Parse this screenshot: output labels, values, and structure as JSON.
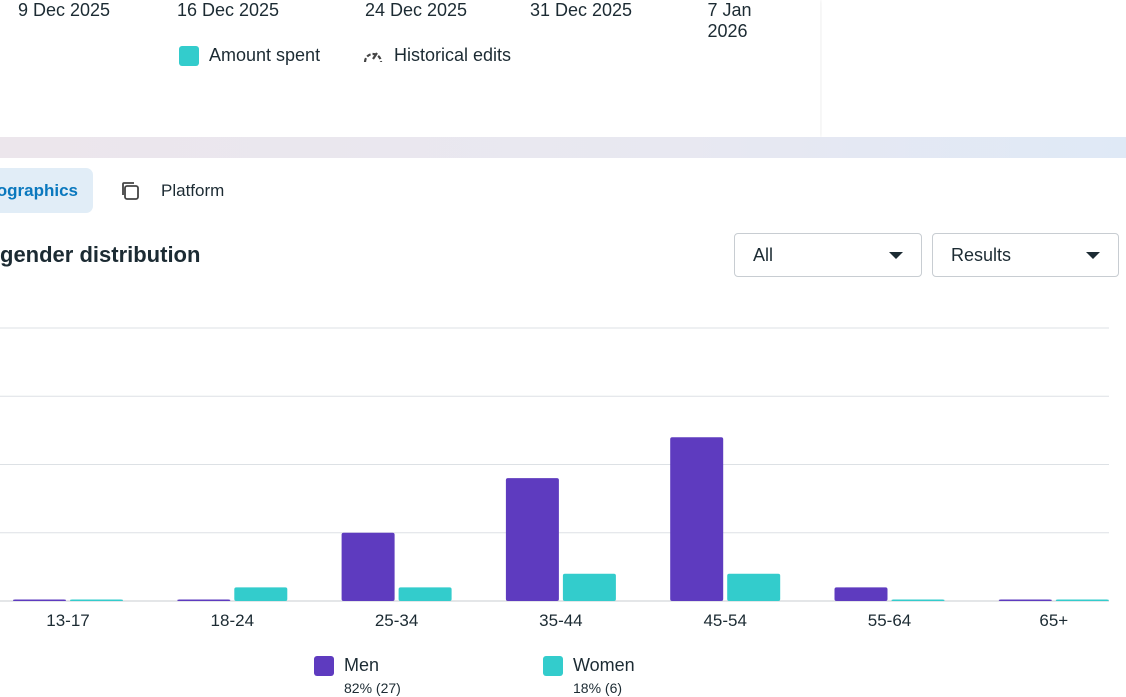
{
  "top_chart": {
    "x_labels": [
      "9 Dec 2025",
      "16 Dec 2025",
      "24 Dec 2025",
      "31 Dec 2025",
      "7 Jan 2026"
    ],
    "legend": [
      {
        "label": "Amount spent",
        "color": "#33cccc"
      },
      {
        "label": "Historical edits",
        "icon": "gauge-icon"
      }
    ]
  },
  "tabs": [
    {
      "label": "ographics",
      "active": true
    },
    {
      "label": "Platform",
      "icon": "copy-icon"
    }
  ],
  "section_title": "gender distribution",
  "filters": {
    "audience": "All",
    "metric": "Results"
  },
  "chart_data": {
    "type": "bar",
    "title": "gender distribution",
    "categories": [
      "13-17",
      "18-24",
      "25-34",
      "35-44",
      "45-54",
      "55-64",
      "65+"
    ],
    "series": [
      {
        "name": "Men",
        "color": "#5e3bbf",
        "values": [
          0,
          0,
          5,
          9,
          12,
          1,
          0
        ],
        "summary": "82% (27)"
      },
      {
        "name": "Women",
        "color": "#33cccc",
        "values": [
          0,
          1,
          1,
          2,
          2,
          0,
          0
        ],
        "summary": "18% (6)"
      }
    ],
    "ylim": [
      0,
      20
    ],
    "grid": true,
    "legend": "bottom"
  }
}
